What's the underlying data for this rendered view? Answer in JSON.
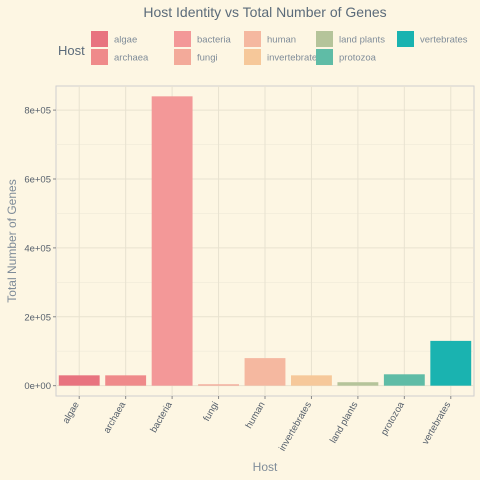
{
  "chart_data": {
    "type": "bar",
    "title": "Host Identity vs Total Number of Genes",
    "xlabel": "Host",
    "ylabel": "Total Number of Genes",
    "legend_title": "Host",
    "legend_position": "top",
    "grid": true,
    "ylim": [
      -30000,
      870000
    ],
    "yticks": [
      0,
      200000,
      400000,
      600000,
      800000
    ],
    "ytick_labels": [
      "0e+00",
      "2e+05",
      "4e+05",
      "6e+05",
      "8e+05"
    ],
    "categories": [
      "algae",
      "archaea",
      "bacteria",
      "fungi",
      "human",
      "invertebrates",
      "land plants",
      "protozoa",
      "vertebrates"
    ],
    "values": [
      30000,
      30000,
      840000,
      4000,
      80000,
      30000,
      10000,
      33000,
      130000
    ],
    "colors": [
      "#e8737f",
      "#ef8a8a",
      "#f39898",
      "#f3aa9a",
      "#f5b8a0",
      "#f6c89a",
      "#b5c49a",
      "#5fbca6",
      "#1ab3b0"
    ]
  }
}
